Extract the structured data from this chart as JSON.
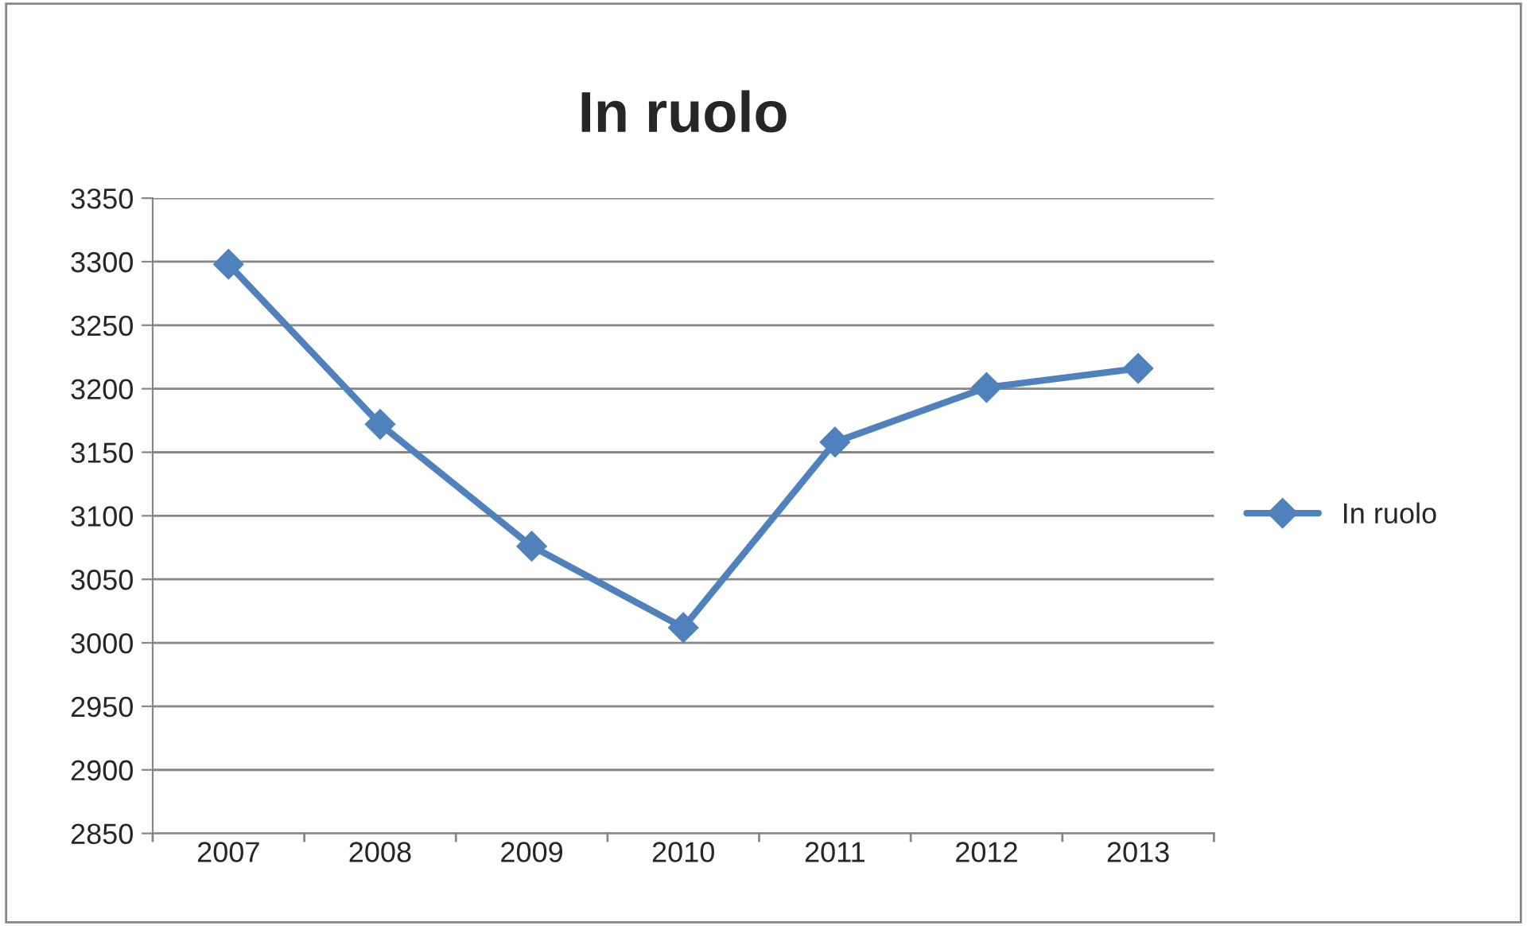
{
  "chart_data": {
    "type": "line",
    "title": "In ruolo",
    "categories": [
      "2007",
      "2008",
      "2009",
      "2010",
      "2011",
      "2012",
      "2013"
    ],
    "series": [
      {
        "name": "In ruolo",
        "color": "#4f81bd",
        "values": [
          3298,
          3172,
          3076,
          3012,
          3158,
          3201,
          3216
        ]
      }
    ],
    "ylim": [
      2850,
      3350
    ],
    "yticks": [
      2850,
      2900,
      2950,
      3000,
      3050,
      3100,
      3150,
      3200,
      3250,
      3300,
      3350
    ],
    "grid": "y",
    "legend": "right",
    "marker": "diamond",
    "line_style": "solid"
  }
}
